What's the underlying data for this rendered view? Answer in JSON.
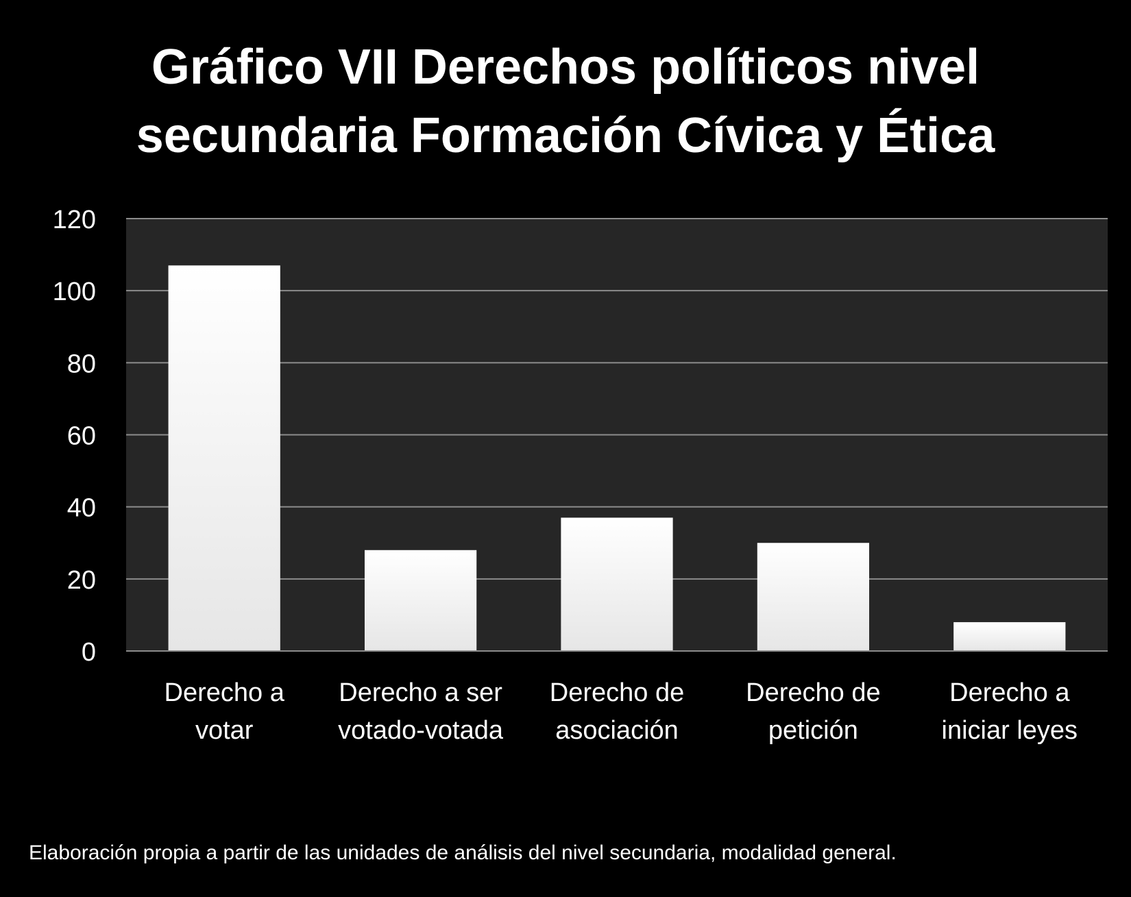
{
  "chart_data": {
    "type": "bar",
    "title": [
      "Gráfico VII Derechos políticos nivel",
      "secundaria Formación Cívica y Ética"
    ],
    "categories": [
      [
        "Derecho a",
        "votar"
      ],
      [
        "Derecho a ser",
        "votado-votada"
      ],
      [
        "Derecho de",
        "asociación"
      ],
      [
        "Derecho de",
        "petición"
      ],
      [
        "Derecho a",
        "iniciar leyes"
      ]
    ],
    "values": [
      107,
      28,
      37,
      30,
      8
    ],
    "ylim": [
      0,
      120
    ],
    "yticks": [
      "0",
      "20",
      "40",
      "60",
      "80",
      "100",
      "120"
    ],
    "grid": true,
    "legend": "none",
    "colors": {
      "background": "#000000",
      "plot_area": "#262626",
      "gridline": "#8c8c8c",
      "bar_top": "#ffffff",
      "bar_bottom": "#e6e6e6",
      "text": "#ffffff"
    }
  },
  "footnote": "Elaboración propia a partir de las unidades de análisis del nivel secundaria, modalidad general."
}
